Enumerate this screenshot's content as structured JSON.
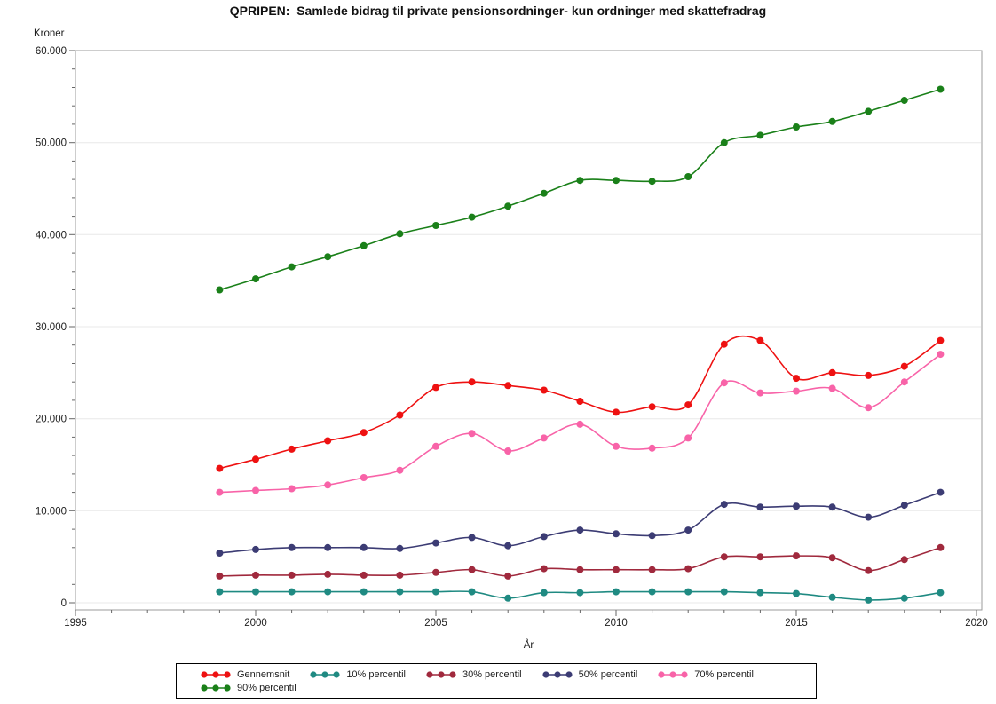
{
  "title": "QPRIPEN:  Samlede bidrag til private pensionsordninger- kun ordninger med skattefradrag",
  "chart_data": {
    "type": "line",
    "title": "QPRIPEN:  Samlede bidrag til private pensionsordninger- kun ordninger med skattefradrag",
    "xlabel": "År",
    "ylabel": "Kroner",
    "xlim": [
      1995,
      2020
    ],
    "ylim": [
      0,
      60000
    ],
    "x_major_ticks": [
      1995,
      2000,
      2005,
      2010,
      2015,
      2020
    ],
    "x_tick_labels": [
      "1995",
      "2000",
      "2005",
      "2010",
      "2015",
      "2020"
    ],
    "x_minor_step": 1,
    "y_major_step": 10000,
    "y_minor_step": 2000,
    "y_tick_labels": [
      "0",
      "10.000",
      "20.000",
      "30.000",
      "40.000",
      "50.000",
      "60.000"
    ],
    "grid": "horizontal-major",
    "legend_position": "bottom",
    "x": [
      1999,
      2000,
      2001,
      2002,
      2003,
      2004,
      2005,
      2006,
      2007,
      2008,
      2009,
      2010,
      2011,
      2012,
      2013,
      2014,
      2015,
      2016,
      2017,
      2018,
      2019
    ],
    "series": [
      {
        "name": "Gennemsnit",
        "color": "#ee1111",
        "values": [
          14600,
          15600,
          16700,
          17600,
          18500,
          20400,
          23400,
          24000,
          23600,
          23100,
          21900,
          20700,
          21300,
          21500,
          28100,
          28500,
          24400,
          25000,
          24700,
          25700,
          28500
        ]
      },
      {
        "name": "10% percentil",
        "color": "#1f8a82",
        "values": [
          1200,
          1200,
          1200,
          1200,
          1200,
          1200,
          1200,
          1200,
          500,
          1100,
          1100,
          1200,
          1200,
          1200,
          1200,
          1100,
          1000,
          600,
          300,
          500,
          1100
        ]
      },
      {
        "name": "30% percentil",
        "color": "#a0293d",
        "values": [
          2900,
          3000,
          3000,
          3100,
          3000,
          3000,
          3300,
          3600,
          2900,
          3700,
          3600,
          3600,
          3600,
          3700,
          5000,
          5000,
          5100,
          4900,
          3500,
          4700,
          6000
        ]
      },
      {
        "name": "50% percentil",
        "color": "#3c3c74",
        "values": [
          5400,
          5800,
          6000,
          6000,
          6000,
          5900,
          6500,
          7100,
          6200,
          7200,
          7900,
          7500,
          7300,
          7900,
          10700,
          10400,
          10500,
          10400,
          9300,
          10600,
          12000
        ]
      },
      {
        "name": "70% percentil",
        "color": "#f863a8",
        "values": [
          12000,
          12200,
          12400,
          12800,
          13600,
          14400,
          17000,
          18400,
          16500,
          17900,
          19400,
          17000,
          16800,
          17900,
          23900,
          22800,
          23000,
          23300,
          21200,
          24000,
          27000
        ]
      },
      {
        "name": "90% percentil",
        "color": "#1a8019",
        "values": [
          34000,
          35200,
          36500,
          37600,
          38800,
          40100,
          41000,
          41900,
          43100,
          44500,
          45900,
          45900,
          45800,
          46300,
          50000,
          50800,
          51700,
          52300,
          53400,
          54600,
          55800
        ]
      }
    ],
    "style": {
      "frame_color": "#9b9b9b",
      "tick_color": "#666666",
      "grid_color": "#e8e8e8",
      "label_color": "#202020"
    }
  }
}
